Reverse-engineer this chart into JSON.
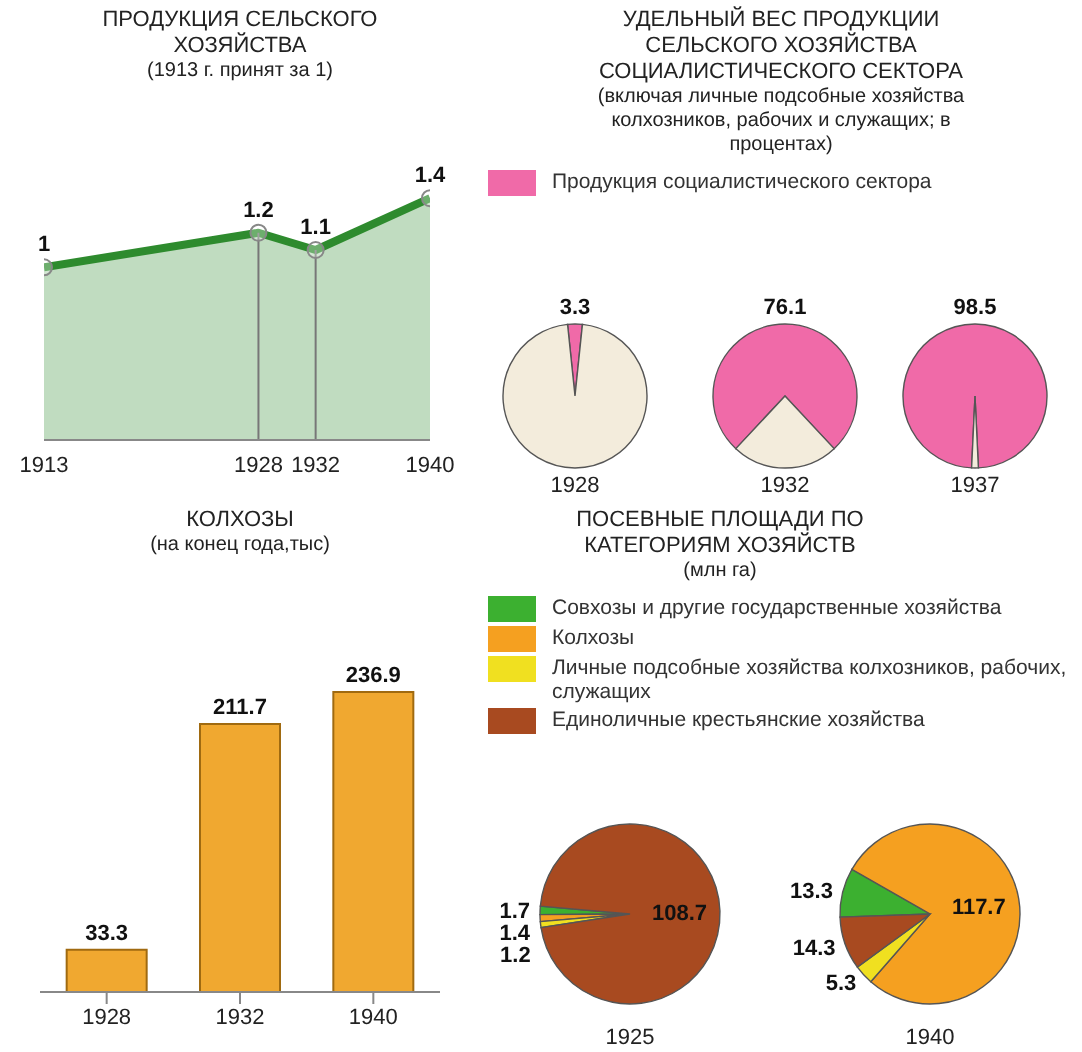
{
  "chart_data": [
    {
      "type": "area",
      "title": "ПРОДУКЦИЯ СЕЛЬСКОГО ХОЗЯЙСТВА",
      "subtitle": "(1913 г. принят за 1)",
      "x": [
        1913,
        1928,
        1932,
        1940
      ],
      "values": [
        1,
        1.2,
        1.1,
        1.4
      ],
      "color": "#2e8b2e",
      "marker": "circle",
      "data_labels": true,
      "xlim": [
        1913,
        1940
      ],
      "xticks": [
        1913,
        1928,
        1932,
        1940
      ],
      "ref_lines": [
        {
          "axis": "x",
          "value": 1928
        },
        {
          "axis": "x",
          "value": 1932
        }
      ],
      "tick_labels": "x"
    },
    {
      "type": "pie",
      "title": "УДЕЛЬНЫЙ ВЕС ПРОДУКЦИИ СЕЛЬСКОГО ХОЗЯЙСТВА СОЦИАЛИСТИЧЕСКОГО СЕКТОРА",
      "subtitle": "(включая личные подсобные хозяйства колхозников, рабочих и служащих; в процентах)",
      "categories": [
        "Продукция социалистического сектора",
        null
      ],
      "values": [
        3.3,
        96.7
      ],
      "colors": [
        "#f06aa8",
        "#f3ecdc"
      ],
      "value_labels": [
        "3.3",
        null
      ],
      "xlabel": "1928",
      "legend": "top"
    },
    {
      "type": "pie",
      "values": [
        76.1,
        23.9
      ],
      "colors": [
        "#f06aa8",
        "#f3ecdc"
      ],
      "value_labels": [
        "76.1",
        null
      ],
      "xlabel": "1932"
    },
    {
      "type": "pie",
      "values": [
        98.5,
        1.5
      ],
      "colors": [
        "#f06aa8",
        "#f3ecdc"
      ],
      "value_labels": [
        "98.5",
        null
      ],
      "xlabel": "1937"
    },
    {
      "type": "bar",
      "title": "КОЛХОЗЫ",
      "subtitle": "(на конец года,тыс)",
      "categories": [
        "1928",
        "1932",
        "1940"
      ],
      "values": [
        33.3,
        211.7,
        236.9
      ],
      "color": "#f0a830",
      "data_labels": true,
      "tick_labels": "x"
    },
    {
      "type": "pie",
      "title": "ПОСЕВНЫЕ ПЛОЩАДИ ПО КАТЕГОРИЯМ ХОЗЯЙСТВ",
      "subtitle": "(млн га)",
      "categories": [
        "Совхозы и другие государственные хозяйства",
        "Колхозы",
        "Личные подсобные хозяйства колхозников, рабочих, служащих",
        "Единоличные крестьянские хозяйства"
      ],
      "values": [
        1.7,
        1.4,
        1.2,
        108.7
      ],
      "colors": [
        "#3cb030",
        "#f5a020",
        "#f0e020",
        "#a84a20"
      ],
      "data_labels": true,
      "xlabel": "1925",
      "legend": "top"
    },
    {
      "type": "pie",
      "values": [
        13.3,
        117.7,
        5.3,
        14.3
      ],
      "colors": [
        "#3cb030",
        "#f5a020",
        "#f0e020",
        "#a84a20"
      ],
      "data_labels": true,
      "xlabel": "1940"
    }
  ]
}
